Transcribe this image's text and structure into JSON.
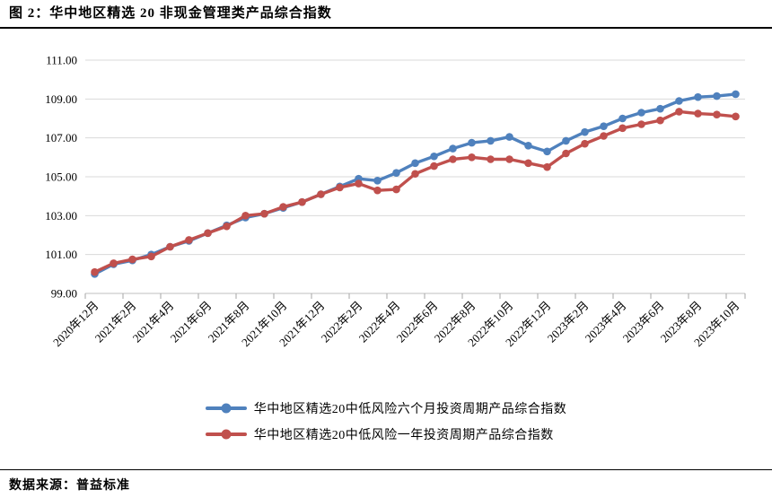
{
  "figure": {
    "title": "图 2：华中地区精选 20 非现金管理类产品综合指数"
  },
  "source": {
    "label": "数据来源：普益标准"
  },
  "colors": {
    "series_blue": "#4F81BD",
    "series_red": "#C0504D",
    "gridline": "#D9D9D9",
    "axis": "#BFBFBF",
    "tick": "#A6A6A6",
    "text": "#000000"
  },
  "chart_data": {
    "type": "line",
    "title": "",
    "xlabel": "",
    "ylabel": "",
    "ylim": [
      99,
      111
    ],
    "y_ticks": [
      "99.00",
      "101.00",
      "103.00",
      "105.00",
      "107.00",
      "109.00",
      "111.00"
    ],
    "grid": "horizontal",
    "legend_position": "bottom",
    "x_tick_interval": 2,
    "categories": [
      "2020年12月",
      "2021年1月",
      "2021年2月",
      "2021年3月",
      "2021年4月",
      "2021年5月",
      "2021年6月",
      "2021年7月",
      "2021年8月",
      "2021年9月",
      "2021年10月",
      "2021年11月",
      "2021年12月",
      "2022年1月",
      "2022年2月",
      "2022年3月",
      "2022年4月",
      "2022年5月",
      "2022年6月",
      "2022年7月",
      "2022年8月",
      "2022年9月",
      "2022年10月",
      "2022年11月",
      "2022年12月",
      "2023年1月",
      "2023年2月",
      "2023年3月",
      "2023年4月",
      "2023年5月",
      "2023年6月",
      "2023年7月",
      "2023年8月",
      "2023年9月",
      "2023年10月"
    ],
    "shown_x_tick_labels": [
      "2020年12月",
      "2021年2月",
      "2021年4月",
      "2021年6月",
      "2021年8月",
      "2021年10月",
      "2021年12月",
      "2022年2月",
      "2022年4月",
      "2022年6月",
      "2022年8月",
      "2022年10月",
      "2022年12月",
      "2023年2月",
      "2023年4月",
      "2023年6月",
      "2023年8月",
      "2023年10月"
    ],
    "series": [
      {
        "name": "华中地区精选20中低风险六个月投资周期产品综合指数",
        "color": "#4F81BD",
        "values": [
          100.0,
          100.5,
          100.7,
          101.0,
          101.4,
          101.7,
          102.1,
          102.5,
          102.9,
          103.1,
          103.4,
          103.7,
          104.1,
          104.5,
          104.9,
          104.8,
          105.2,
          105.7,
          106.05,
          106.45,
          106.75,
          106.85,
          107.05,
          106.6,
          106.3,
          106.85,
          107.3,
          107.6,
          108.0,
          108.3,
          108.5,
          108.9,
          109.1,
          109.15,
          109.25
        ]
      },
      {
        "name": "华中地区精选20中低风险一年投资周期产品综合指数",
        "color": "#C0504D",
        "values": [
          100.1,
          100.55,
          100.75,
          100.9,
          101.4,
          101.75,
          102.1,
          102.45,
          103.0,
          103.1,
          103.45,
          103.7,
          104.1,
          104.45,
          104.65,
          104.3,
          104.35,
          105.15,
          105.55,
          105.9,
          106.0,
          105.9,
          105.9,
          105.7,
          105.5,
          106.2,
          106.7,
          107.1,
          107.5,
          107.7,
          107.9,
          108.35,
          108.25,
          108.2,
          108.1
        ]
      }
    ]
  }
}
